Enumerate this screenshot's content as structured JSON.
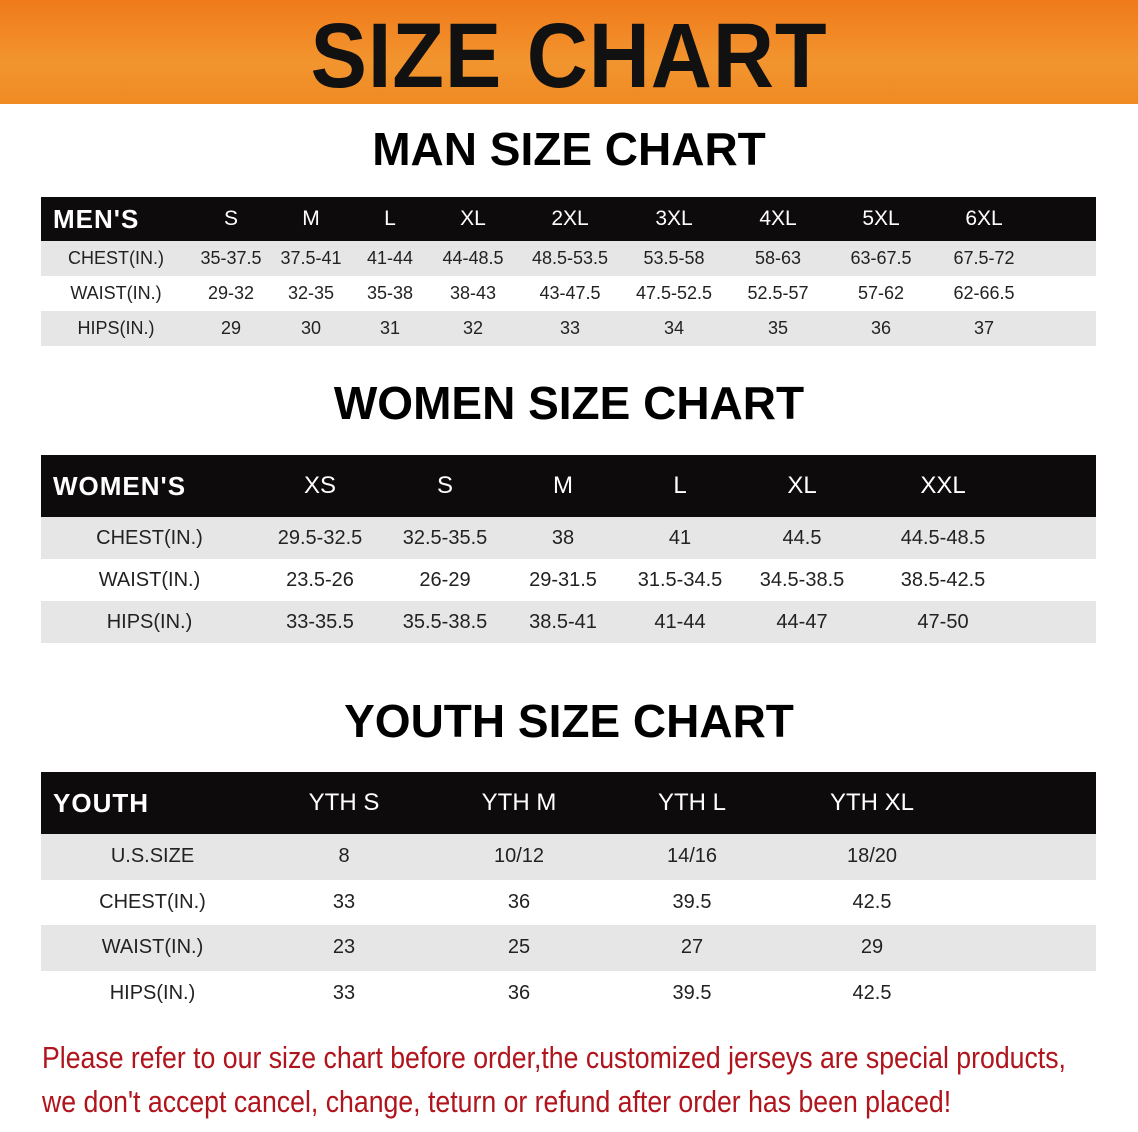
{
  "banner": {
    "title": "SIZE CHART",
    "color": "#f08a22"
  },
  "men": {
    "title": "MAN SIZE CHART",
    "header": "MEN'S",
    "sizes": [
      "S",
      "M",
      "L",
      "XL",
      "2XL",
      "3XL",
      "4XL",
      "5XL",
      "6XL"
    ],
    "rows": [
      {
        "label": "CHEST(IN.)",
        "values": [
          "35-37.5",
          "37.5-41",
          "41-44",
          "44-48.5",
          "48.5-53.5",
          "53.5-58",
          "58-63",
          "63-67.5",
          "67.5-72"
        ]
      },
      {
        "label": "WAIST(IN.)",
        "values": [
          "29-32",
          "32-35",
          "35-38",
          "38-43",
          "43-47.5",
          "47.5-52.5",
          "52.5-57",
          "57-62",
          "62-66.5"
        ]
      },
      {
        "label": "HIPS(IN.)",
        "values": [
          "29",
          "30",
          "31",
          "32",
          "33",
          "34",
          "35",
          "36",
          "37"
        ]
      }
    ]
  },
  "women": {
    "title": "WOMEN SIZE CHART",
    "header": "WOMEN'S",
    "sizes": [
      "XS",
      "S",
      "M",
      "L",
      "XL",
      "XXL"
    ],
    "rows": [
      {
        "label": "CHEST(IN.)",
        "values": [
          "29.5-32.5",
          "32.5-35.5",
          "38",
          "41",
          "44.5",
          "44.5-48.5"
        ]
      },
      {
        "label": "WAIST(IN.)",
        "values": [
          "23.5-26",
          "26-29",
          "29-31.5",
          "31.5-34.5",
          "34.5-38.5",
          "38.5-42.5"
        ]
      },
      {
        "label": "HIPS(IN.)",
        "values": [
          "33-35.5",
          "35.5-38.5",
          "38.5-41",
          "41-44",
          "44-47",
          "47-50"
        ]
      }
    ]
  },
  "youth": {
    "title": "YOUTH SIZE CHART",
    "header": "YOUTH",
    "sizes": [
      "YTH S",
      "YTH M",
      "YTH L",
      "YTH XL"
    ],
    "rows": [
      {
        "label": "U.S.SIZE",
        "values": [
          "8",
          "10/12",
          "14/16",
          "18/20"
        ]
      },
      {
        "label": "CHEST(IN.)",
        "values": [
          "33",
          "36",
          "39.5",
          "42.5"
        ]
      },
      {
        "label": "WAIST(IN.)",
        "values": [
          "23",
          "25",
          "27",
          "29"
        ]
      },
      {
        "label": "HIPS(IN.)",
        "values": [
          "33",
          "36",
          "39.5",
          "42.5"
        ]
      }
    ]
  },
  "notice": {
    "line1": "Please refer to our size chart before order,the customized jerseys are special products,",
    "line2": "we don't accept cancel, change, teturn or refund after order has been placed!",
    "color": "#b0141c"
  }
}
